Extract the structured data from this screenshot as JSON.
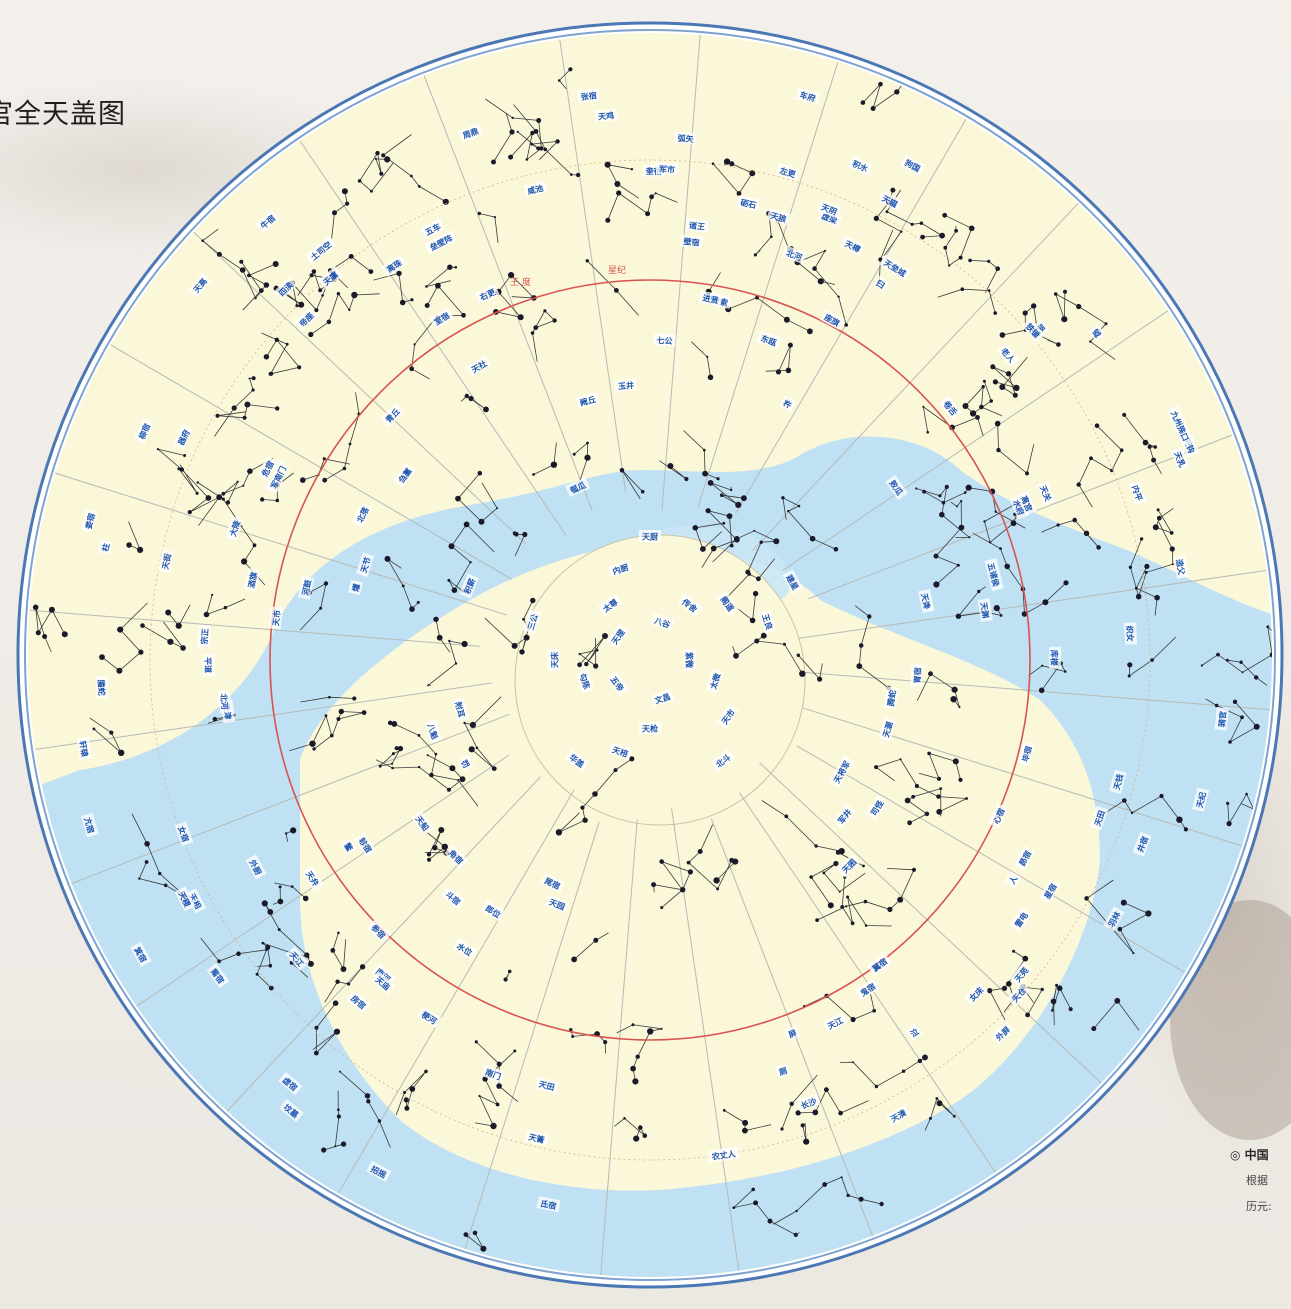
{
  "title": "官全天盖图",
  "credits": {
    "line1": "◎ 中国",
    "line2": "根据",
    "line3": "历元:"
  },
  "colors": {
    "page_bg": "#f0ece6",
    "sky_cream": "#fbf7d9",
    "milky_way": "#b8dcf2",
    "rim_blue": "#4b78b4",
    "ecliptic_red": "#d9534f",
    "label_blue": "#1f56b0",
    "star_dark": "#1a1a2a"
  },
  "markers": {
    "left": "王 度",
    "right": "星纪"
  },
  "labels": [
    {
      "t": "紫微",
      "a": "紫微垣"
    },
    {
      "t": "太微",
      "a": "太微垣"
    },
    {
      "t": "天市",
      "a": "天市垣"
    },
    {
      "t": "北斗",
      "a": "北斗"
    },
    {
      "t": "文昌",
      "a": "文昌"
    },
    {
      "t": "天枪",
      "a": "天枪"
    },
    {
      "t": "天棓",
      "a": "天棓"
    },
    {
      "t": "华盖",
      "a": "华盖"
    },
    {
      "t": "五帝",
      "a": "五帝"
    },
    {
      "t": "勾陈",
      "a": "勾陈"
    },
    {
      "t": "天床",
      "a": "天床"
    },
    {
      "t": "三公",
      "a": "三公"
    },
    {
      "t": "天理",
      "a": "天理"
    },
    {
      "t": "太尊",
      "a": "太尊"
    },
    {
      "t": "内厨",
      "a": "内厨"
    },
    {
      "t": "天厨",
      "a": "天厨"
    },
    {
      "t": "八谷",
      "a": "八谷"
    },
    {
      "t": "传舍",
      "a": "传舍"
    },
    {
      "t": "阁道",
      "a": "阁道"
    },
    {
      "t": "王良",
      "a": "王良"
    },
    {
      "t": "天津",
      "a": "天津"
    },
    {
      "t": "织女",
      "a": "织女"
    },
    {
      "t": "河鼓",
      "a": "河鼓"
    },
    {
      "t": "天市",
      "a": "天市"
    },
    {
      "t": "贯索",
      "a": "贯索"
    },
    {
      "t": "七公",
      "a": "七公"
    },
    {
      "t": "天纪",
      "a": "天纪"
    },
    {
      "t": "女床",
      "a": "女床"
    },
    {
      "t": "帝座",
      "a": "帝座"
    },
    {
      "t": "宗正",
      "a": "宗正"
    },
    {
      "t": "郎位",
      "a": "郎位"
    },
    {
      "t": "轩辕",
      "a": "轩辕"
    },
    {
      "t": "北河",
      "a": "北河"
    },
    {
      "t": "五车",
      "a": "五车"
    },
    {
      "t": "天船",
      "a": "天船"
    },
    {
      "t": "大陵",
      "a": "大陵"
    },
    {
      "t": "胃宿",
      "a": "胃宿"
    },
    {
      "t": "娄宿",
      "a": "娄宿"
    },
    {
      "t": "奎宿",
      "a": "奎宿"
    },
    {
      "t": "壁宿",
      "a": "壁宿"
    },
    {
      "t": "室宿",
      "a": "室宿"
    },
    {
      "t": "危宿",
      "a": "危宿"
    },
    {
      "t": "虚宿",
      "a": "虚宿"
    },
    {
      "t": "女宿",
      "a": "女宿"
    },
    {
      "t": "牛宿",
      "a": "牛宿"
    },
    {
      "t": "斗宿",
      "a": "斗宿"
    },
    {
      "t": "箕宿",
      "a": "箕宿"
    },
    {
      "t": "尾宿",
      "a": "尾宿"
    },
    {
      "t": "心宿",
      "a": "心宿"
    },
    {
      "t": "房宿",
      "a": "房宿"
    },
    {
      "t": "氐宿",
      "a": "氐宿"
    },
    {
      "t": "亢宿",
      "a": "亢宿"
    },
    {
      "t": "角宿",
      "a": "角宿"
    },
    {
      "t": "轸宿",
      "a": "轸宿"
    },
    {
      "t": "翼宿",
      "a": "翼宿"
    },
    {
      "t": "张宿",
      "a": "张宿"
    },
    {
      "t": "星宿",
      "a": "星宿"
    },
    {
      "t": "柳宿",
      "a": "柳宿"
    },
    {
      "t": "鬼宿",
      "a": "鬼宿"
    },
    {
      "t": "井宿",
      "a": "井宿"
    },
    {
      "t": "参宿",
      "a": "参宿"
    },
    {
      "t": "觜宿",
      "a": "觜宿"
    },
    {
      "t": "毕宿",
      "a": "毕宿"
    },
    {
      "t": "昴宿",
      "a": "昴宿"
    },
    {
      "t": "天苑",
      "a": "天苑"
    },
    {
      "t": "天园",
      "a": "天园"
    },
    {
      "t": "军市",
      "a": "军市"
    },
    {
      "t": "老人",
      "a": "老人"
    },
    {
      "t": "南门",
      "a": "南门"
    },
    {
      "t": "骑官",
      "a": "骑官"
    },
    {
      "t": "库楼",
      "a": "库楼"
    },
    {
      "t": "天江",
      "a": "天江"
    },
    {
      "t": "天弁",
      "a": "天弁"
    },
    {
      "t": "羽林",
      "a": "羽林"
    },
    {
      "t": "北落",
      "a": "北落"
    },
    {
      "t": "天钱",
      "a": "天钱"
    },
    {
      "t": "土司空",
      "a": "土司空"
    },
    {
      "t": "天仓",
      "a": "天仓"
    },
    {
      "t": "天囷",
      "a": "天囷"
    },
    {
      "t": "天廪",
      "a": "天廪"
    },
    {
      "t": "天街",
      "a": "天街"
    },
    {
      "t": "积水",
      "a": "积水"
    },
    {
      "t": "水府",
      "a": "水府"
    },
    {
      "t": "四渎",
      "a": "四渎"
    },
    {
      "t": "阙丘",
      "a": "阙丘"
    },
    {
      "t": "天狼",
      "a": "天狼"
    },
    {
      "t": "弧矢",
      "a": "弧矢"
    },
    {
      "t": "外厨",
      "a": "外厨"
    },
    {
      "t": "天社",
      "a": "天社"
    },
    {
      "t": "青丘",
      "a": "青丘"
    },
    {
      "t": "器府",
      "a": "器府"
    },
    {
      "t": "东瓯",
      "a": "东瓯"
    },
    {
      "t": "长沙",
      "a": "长沙"
    },
    {
      "t": "平道",
      "a": "平道"
    },
    {
      "t": "天田",
      "a": "天田"
    },
    {
      "t": "进贤",
      "a": "进贤"
    },
    {
      "t": "周鼎",
      "a": "周鼎"
    },
    {
      "t": "招摇",
      "a": "招摇"
    },
    {
      "t": "梗河",
      "a": "梗河"
    },
    {
      "t": "天乳",
      "a": "天乳"
    },
    {
      "t": "天辐",
      "a": "天辐"
    },
    {
      "t": "罚",
      "a": "罚"
    },
    {
      "t": "天江",
      "a": "天江"
    },
    {
      "t": "建星",
      "a": "建星"
    },
    {
      "t": "天鸡",
      "a": "天鸡"
    },
    {
      "t": "天渊",
      "a": "天渊"
    },
    {
      "t": "鳖",
      "a": "鳖"
    },
    {
      "t": "农丈人",
      "a": "农丈人"
    },
    {
      "t": "天籥",
      "a": "天籥"
    },
    {
      "t": "狗国",
      "a": "狗国"
    },
    {
      "t": "天田",
      "a": "天田"
    },
    {
      "t": "离珠",
      "a": "离珠"
    },
    {
      "t": "败瓜",
      "a": "败瓜"
    },
    {
      "t": "瓠瓜",
      "a": "瓠瓜"
    },
    {
      "t": "天垒城",
      "a": "天垒城"
    },
    {
      "t": "哭",
      "a": "哭"
    },
    {
      "t": "泣",
      "a": "泣"
    },
    {
      "t": "坟墓",
      "a": "坟墓"
    },
    {
      "t": "虚梁",
      "a": "虚梁"
    },
    {
      "t": "天钩",
      "a": "天钩"
    },
    {
      "t": "造父",
      "a": "造父"
    },
    {
      "t": "腾蛇",
      "a": "腾蛇"
    },
    {
      "t": "螣蛇",
      "a": "螣蛇"
    },
    {
      "t": "车府",
      "a": "车府"
    },
    {
      "t": "人",
      "a": "人"
    },
    {
      "t": "杵",
      "a": "杵"
    },
    {
      "t": "臼",
      "a": "臼"
    },
    {
      "t": "离宫",
      "a": "离宫"
    },
    {
      "t": "雷电",
      "a": "雷电"
    },
    {
      "t": "垒壁阵",
      "a": "垒壁阵"
    },
    {
      "t": "八魁",
      "a": "八魁"
    },
    {
      "t": "铁锧",
      "a": "铁锧"
    },
    {
      "t": "天溷",
      "a": "天溷"
    },
    {
      "t": "外屏",
      "a": "外屏"
    },
    {
      "t": "天将军",
      "a": "天将军"
    },
    {
      "t": "军南门",
      "a": "军南门"
    },
    {
      "t": "左更",
      "a": "左更"
    },
    {
      "t": "右更",
      "a": "右更"
    },
    {
      "t": "天阴",
      "a": "天阴"
    },
    {
      "t": "刍藁",
      "a": "刍藁"
    },
    {
      "t": "卷舌",
      "a": "卷舌"
    },
    {
      "t": "天谗",
      "a": "天谗"
    },
    {
      "t": "砺石",
      "a": "砺石"
    },
    {
      "t": "天节",
      "a": "天节"
    },
    {
      "t": "诸王",
      "a": "诸王"
    },
    {
      "t": "天高",
      "a": "天高"
    },
    {
      "t": "九州殊口",
      "a": "九州殊口"
    },
    {
      "t": "附耳",
      "a": "附耳"
    },
    {
      "t": "天关",
      "a": "天关"
    },
    {
      "t": "司怪",
      "a": "司怪"
    },
    {
      "t": "座旗",
      "a": "座旗"
    },
    {
      "t": "天潢",
      "a": "天潢"
    },
    {
      "t": "咸池",
      "a": "咸池"
    },
    {
      "t": "柱",
      "a": "柱"
    },
    {
      "t": "玉井",
      "a": "玉井"
    },
    {
      "t": "军井",
      "a": "军井"
    },
    {
      "t": "屏",
      "a": "屏"
    },
    {
      "t": "厕",
      "a": "厕"
    },
    {
      "t": "钺",
      "a": "钺"
    },
    {
      "t": "水位",
      "a": "水位"
    },
    {
      "t": "南河",
      "a": "南河"
    },
    {
      "t": "北河",
      "a": "北河"
    },
    {
      "t": "天樽",
      "a": "天樽"
    },
    {
      "t": "五诸侯",
      "a": "五诸侯"
    },
    {
      "t": "积薪",
      "a": "积薪"
    },
    {
      "t": "爟",
      "a": "爟"
    },
    {
      "t": "酒旗",
      "a": "酒旗"
    },
    {
      "t": "天相",
      "a": "天相"
    },
    {
      "t": "内平",
      "a": "内平"
    },
    {
      "t": "天稷",
      "a": "天稷"
    },
    {
      "t": "天庙",
      "a": "天庙"
    }
  ]
}
